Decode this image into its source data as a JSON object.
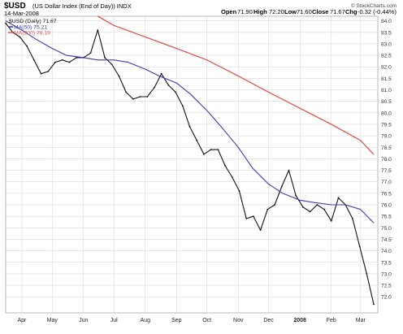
{
  "header": {
    "symbol": "$USD",
    "name": "(US Dollar Index (End of Day)) INDX",
    "date": "14-Mar-2008",
    "open_label": "Open",
    "open": "71.90",
    "high_label": "High",
    "high": "72.20",
    "low_label": "Low",
    "low": "71.60",
    "close_label": "Close",
    "close": "71.67",
    "chg_label": "Chg",
    "chg": "-0.32 (-0.44%)",
    "credit": "© StockCharts.com"
  },
  "legend": {
    "price": "$USD (Daily) 71.67",
    "ma50": "MA(50) 75.21",
    "ma200": "MA(200) 78.19"
  },
  "colors": {
    "price": "#111111",
    "ma50": "#3b3bb5",
    "ma200": "#e0554f",
    "grid": "#d8d8d8",
    "frame": "#b9b9b9"
  },
  "chart_data": {
    "type": "line",
    "style": "ohlc-bars",
    "grid": true,
    "ylim": [
      71.3,
      84.2
    ],
    "y_ticks": [
      72.0,
      72.5,
      73.0,
      73.5,
      74.0,
      74.5,
      75.0,
      75.5,
      76.0,
      76.5,
      77.0,
      77.5,
      78.0,
      78.5,
      79.0,
      79.5,
      80.0,
      80.5,
      81.0,
      81.5,
      82.0,
      82.5,
      83.0,
      83.5,
      84.0
    ],
    "y_tick_labels": [
      "72.0",
      "72.5",
      "73.0",
      "73.5",
      "74.0",
      "74.5",
      "75.0",
      "75.5",
      "76.0",
      "76.5",
      "77.0",
      "77.5",
      "78.0",
      "78.5",
      "79.0",
      "79.5",
      "80.0",
      "80.5",
      "81.0",
      "81.5",
      "82.0",
      "82.5",
      "83.0",
      "83.5",
      "84.0"
    ],
    "x_labels": [
      {
        "label": "Apr",
        "x": "2007-04-01"
      },
      {
        "label": "May",
        "x": "2007-05-01"
      },
      {
        "label": "Jun",
        "x": "2007-06-01"
      },
      {
        "label": "Jul",
        "x": "2007-07-01"
      },
      {
        "label": "Aug",
        "x": "2007-08-01"
      },
      {
        "label": "Sep",
        "x": "2007-09-01"
      },
      {
        "label": "Oct",
        "x": "2007-10-01"
      },
      {
        "label": "Nov",
        "x": "2007-11-01"
      },
      {
        "label": "Dec",
        "x": "2007-12-01"
      },
      {
        "label": "2008",
        "x": "2008-01-01"
      },
      {
        "label": "Feb",
        "x": "2008-02-01"
      },
      {
        "label": "Mar",
        "x": "2008-03-01"
      }
    ],
    "xlim": [
      "2007-03-16",
      "2008-03-18"
    ],
    "series": [
      {
        "name": "$USD (Daily)",
        "points": [
          [
            "2007-03-16",
            83.9
          ],
          [
            "2007-03-23",
            83.5
          ],
          [
            "2007-03-30",
            83.3
          ],
          [
            "2007-04-06",
            82.9
          ],
          [
            "2007-04-13",
            82.3
          ],
          [
            "2007-04-20",
            81.7
          ],
          [
            "2007-04-27",
            81.8
          ],
          [
            "2007-05-04",
            82.2
          ],
          [
            "2007-05-11",
            82.3
          ],
          [
            "2007-05-18",
            82.2
          ],
          [
            "2007-05-25",
            82.4
          ],
          [
            "2007-06-01",
            82.4
          ],
          [
            "2007-06-08",
            82.6
          ],
          [
            "2007-06-15",
            83.6
          ],
          [
            "2007-06-22",
            82.4
          ],
          [
            "2007-06-29",
            82.1
          ],
          [
            "2007-07-06",
            81.6
          ],
          [
            "2007-07-13",
            80.9
          ],
          [
            "2007-07-20",
            80.6
          ],
          [
            "2007-07-27",
            80.7
          ],
          [
            "2007-08-03",
            80.7
          ],
          [
            "2007-08-10",
            81.1
          ],
          [
            "2007-08-17",
            81.7
          ],
          [
            "2007-08-24",
            81.2
          ],
          [
            "2007-08-31",
            80.9
          ],
          [
            "2007-09-07",
            80.3
          ],
          [
            "2007-09-14",
            79.4
          ],
          [
            "2007-09-21",
            78.8
          ],
          [
            "2007-09-28",
            78.2
          ],
          [
            "2007-10-05",
            78.4
          ],
          [
            "2007-10-12",
            78.4
          ],
          [
            "2007-10-19",
            77.7
          ],
          [
            "2007-10-26",
            77.2
          ],
          [
            "2007-11-02",
            76.6
          ],
          [
            "2007-11-09",
            75.4
          ],
          [
            "2007-11-16",
            75.5
          ],
          [
            "2007-11-23",
            74.9
          ],
          [
            "2007-11-30",
            75.8
          ],
          [
            "2007-12-07",
            76.0
          ],
          [
            "2007-12-14",
            76.8
          ],
          [
            "2007-12-21",
            77.5
          ],
          [
            "2007-12-28",
            76.4
          ],
          [
            "2008-01-04",
            75.9
          ],
          [
            "2008-01-11",
            75.7
          ],
          [
            "2008-01-18",
            76.0
          ],
          [
            "2008-01-25",
            75.8
          ],
          [
            "2008-02-01",
            75.3
          ],
          [
            "2008-02-08",
            76.3
          ],
          [
            "2008-02-15",
            76.0
          ],
          [
            "2008-02-22",
            75.4
          ],
          [
            "2008-02-29",
            74.2
          ],
          [
            "2008-03-07",
            73.0
          ],
          [
            "2008-03-14",
            71.67
          ]
        ]
      },
      {
        "name": "MA(50)",
        "points": [
          [
            "2007-03-16",
            84.0
          ],
          [
            "2007-04-01",
            83.6
          ],
          [
            "2007-04-15",
            83.2
          ],
          [
            "2007-05-01",
            82.8
          ],
          [
            "2007-05-15",
            82.5
          ],
          [
            "2007-06-01",
            82.4
          ],
          [
            "2007-06-15",
            82.3
          ],
          [
            "2007-07-01",
            82.3
          ],
          [
            "2007-07-15",
            82.2
          ],
          [
            "2007-08-01",
            81.9
          ],
          [
            "2007-08-15",
            81.6
          ],
          [
            "2007-09-01",
            81.3
          ],
          [
            "2007-09-15",
            80.8
          ],
          [
            "2007-10-01",
            80.1
          ],
          [
            "2007-10-15",
            79.4
          ],
          [
            "2007-11-01",
            78.5
          ],
          [
            "2007-11-15",
            77.6
          ],
          [
            "2007-12-01",
            76.9
          ],
          [
            "2007-12-15",
            76.5
          ],
          [
            "2008-01-01",
            76.2
          ],
          [
            "2008-01-15",
            76.1
          ],
          [
            "2008-02-01",
            76.0
          ],
          [
            "2008-02-15",
            76.0
          ],
          [
            "2008-03-01",
            75.8
          ],
          [
            "2008-03-14",
            75.21
          ]
        ]
      },
      {
        "name": "MA(200)",
        "points": [
          [
            "2007-06-15",
            84.2
          ],
          [
            "2007-07-01",
            83.8
          ],
          [
            "2007-08-01",
            83.3
          ],
          [
            "2007-09-01",
            82.8
          ],
          [
            "2007-10-01",
            82.3
          ],
          [
            "2007-11-01",
            81.6
          ],
          [
            "2007-12-01",
            80.9
          ],
          [
            "2008-01-01",
            80.2
          ],
          [
            "2008-02-01",
            79.5
          ],
          [
            "2008-03-01",
            78.8
          ],
          [
            "2008-03-14",
            78.19
          ]
        ]
      }
    ]
  }
}
